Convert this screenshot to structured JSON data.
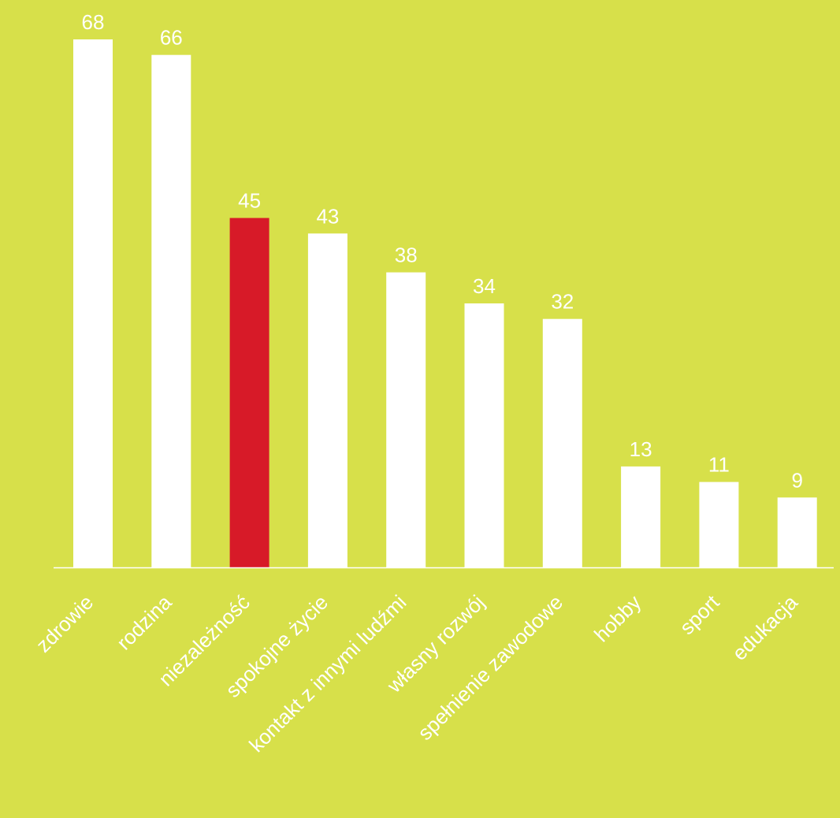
{
  "chart_data": {
    "type": "bar",
    "categories": [
      "zdrowie",
      "rodzina",
      "niezależność",
      "spokojne życie",
      "kontakt z innymi ludźmi",
      "własny rozwój",
      "spełnienie zawodowe",
      "hobby",
      "sport",
      "edukacja"
    ],
    "values": [
      68,
      66,
      45,
      43,
      38,
      34,
      32,
      13,
      11,
      9
    ],
    "value_labels": [
      "68",
      "66",
      "45",
      "43",
      "38",
      "34",
      "32",
      "13",
      "11",
      "9"
    ],
    "highlight_index": 2,
    "title": "",
    "xlabel": "",
    "ylabel": "",
    "ylim": [
      0,
      68
    ],
    "grid": false,
    "legend": "none"
  },
  "colors": {
    "background": "#d7e04a",
    "bar": "#ffffff",
    "highlight_bar": "#d71a28",
    "axis": "#ffffff",
    "text": "#ffffff"
  }
}
